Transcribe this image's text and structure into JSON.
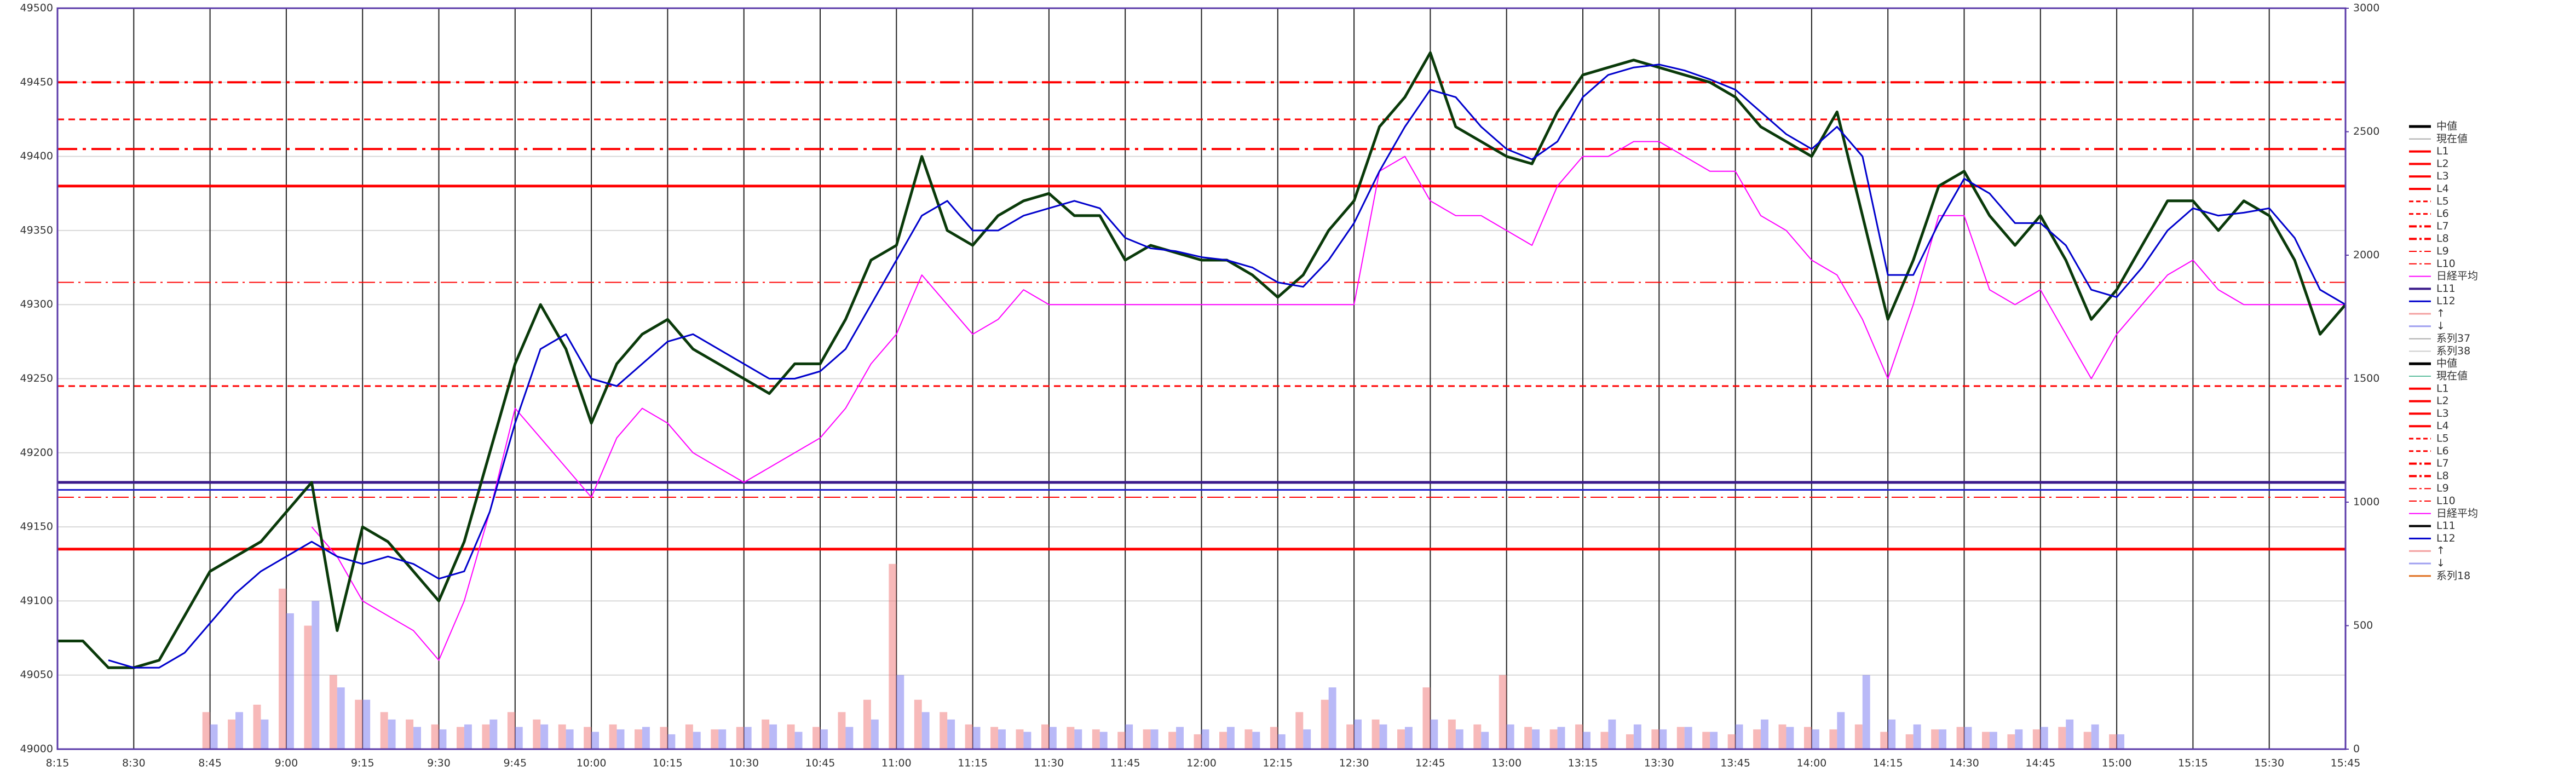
{
  "chart_data": {
    "type": "line",
    "x": [
      495,
      500,
      505,
      510,
      515,
      520,
      525,
      530,
      535,
      540,
      545,
      550,
      555,
      560,
      565,
      570,
      575,
      580,
      585,
      590,
      595,
      600,
      605,
      610,
      615,
      620,
      625,
      630,
      635,
      640,
      645,
      650,
      655,
      660,
      665,
      670,
      675,
      680,
      685,
      690,
      695,
      700,
      705,
      710,
      715,
      720,
      725,
      730,
      735,
      740,
      745,
      750,
      755,
      760,
      765,
      770,
      775,
      780,
      785,
      790,
      795,
      800,
      805,
      810,
      815,
      820,
      825,
      830,
      835,
      840,
      845,
      850,
      855,
      860,
      865,
      870,
      875,
      880,
      885,
      890,
      895,
      900,
      905,
      910,
      915,
      920,
      925,
      930,
      935,
      940,
      945
    ],
    "xlim": [
      495,
      945
    ],
    "xticks": [
      {
        "value": 495,
        "label": "8:15"
      },
      {
        "value": 510,
        "label": "8:30"
      },
      {
        "value": 525,
        "label": "8:45"
      },
      {
        "value": 540,
        "label": "9:00"
      },
      {
        "value": 555,
        "label": "9:15"
      },
      {
        "value": 570,
        "label": "9:30"
      },
      {
        "value": 585,
        "label": "9:45"
      },
      {
        "value": 600,
        "label": "10:00"
      },
      {
        "value": 615,
        "label": "10:15"
      },
      {
        "value": 630,
        "label": "10:30"
      },
      {
        "value": 645,
        "label": "10:45"
      },
      {
        "value": 660,
        "label": "11:00"
      },
      {
        "value": 675,
        "label": "11:15"
      },
      {
        "value": 690,
        "label": "11:30"
      },
      {
        "value": 705,
        "label": "11:45"
      },
      {
        "value": 720,
        "label": "12:00"
      },
      {
        "value": 735,
        "label": "12:15"
      },
      {
        "value": 750,
        "label": "12:30"
      },
      {
        "value": 765,
        "label": "12:45"
      },
      {
        "value": 780,
        "label": "13:00"
      },
      {
        "value": 795,
        "label": "13:15"
      },
      {
        "value": 810,
        "label": "13:30"
      },
      {
        "value": 825,
        "label": "13:45"
      },
      {
        "value": 840,
        "label": "14:00"
      },
      {
        "value": 855,
        "label": "14:15"
      },
      {
        "value": 870,
        "label": "14:30"
      },
      {
        "value": 885,
        "label": "14:45"
      },
      {
        "value": 900,
        "label": "15:00"
      },
      {
        "value": 915,
        "label": "15:15"
      },
      {
        "value": 930,
        "label": "15:30"
      },
      {
        "value": 945,
        "label": "15:45"
      }
    ],
    "ylim": [
      49000,
      49500
    ],
    "yticks": [
      49000,
      49050,
      49100,
      49150,
      49200,
      49250,
      49300,
      49350,
      49400,
      49450,
      49500
    ],
    "y2lim": [
      0,
      3000
    ],
    "y2ticks": [
      0,
      500,
      1000,
      1500,
      2000,
      2500,
      3000
    ],
    "grid": true,
    "levels": [
      {
        "value": 49380,
        "color": "#ff0000",
        "dash": "none",
        "width": 5
      },
      {
        "value": 49135,
        "color": "#ff0000",
        "dash": "none",
        "width": 5
      },
      {
        "value": 49425,
        "color": "#ff0000",
        "dash": "12,8",
        "width": 3
      },
      {
        "value": 49245,
        "color": "#ff0000",
        "dash": "12,8",
        "width": 3
      },
      {
        "value": 49450,
        "color": "#ff0000",
        "dash": "36,10,6,10",
        "width": 4
      },
      {
        "value": 49405,
        "color": "#ff0000",
        "dash": "36,10,6,10",
        "width": 4
      },
      {
        "value": 49315,
        "color": "#ff0000",
        "dash": "30,8,4,8",
        "width": 2
      },
      {
        "value": 49170,
        "color": "#ff0000",
        "dash": "30,8,4,8",
        "width": 2
      },
      {
        "value": 49180,
        "color": "#3a1a8a",
        "dash": "none",
        "width": 5
      },
      {
        "value": 49175,
        "color": "#2020cc",
        "dash": "none",
        "width": 3
      }
    ],
    "bar_series": [
      {
        "name": "系列37",
        "color": "#f08080",
        "axis": "y2",
        "values": [
          null,
          null,
          null,
          null,
          null,
          null,
          150,
          120,
          180,
          650,
          500,
          300,
          200,
          150,
          120,
          100,
          90,
          100,
          150,
          120,
          100,
          90,
          100,
          80,
          90,
          100,
          80,
          90,
          120,
          100,
          90,
          150,
          200,
          750,
          200,
          150,
          100,
          90,
          80,
          100,
          90,
          80,
          70,
          80,
          70,
          60,
          70,
          80,
          90,
          150,
          200,
          100,
          120,
          80,
          250,
          120,
          100,
          300,
          90,
          80,
          100,
          70,
          60,
          80,
          90,
          70,
          60,
          80,
          100,
          90,
          80,
          100,
          70,
          60,
          80,
          90,
          70,
          60,
          80,
          90,
          70,
          60,
          null,
          null,
          null,
          null,
          null,
          null,
          null,
          null,
          null
        ]
      },
      {
        "name": "系列38",
        "color": "#8080f0",
        "axis": "y2",
        "values": [
          null,
          null,
          null,
          null,
          null,
          null,
          100,
          150,
          120,
          550,
          600,
          250,
          200,
          120,
          90,
          80,
          100,
          120,
          90,
          100,
          80,
          70,
          80,
          90,
          60,
          70,
          80,
          90,
          100,
          70,
          80,
          90,
          120,
          300,
          150,
          120,
          90,
          80,
          70,
          90,
          80,
          70,
          100,
          80,
          90,
          80,
          90,
          70,
          60,
          80,
          250,
          120,
          100,
          90,
          120,
          80,
          70,
          100,
          80,
          90,
          70,
          120,
          100,
          80,
          90,
          70,
          100,
          120,
          90,
          80,
          150,
          300,
          120,
          100,
          80,
          90,
          70,
          80,
          90,
          120,
          100,
          60,
          null,
          null,
          null,
          null,
          null,
          null,
          null,
          null,
          null
        ]
      }
    ],
    "series": [
      {
        "name": "日経平均",
        "color": "#ff00ff",
        "width": 2,
        "values": [
          null,
          null,
          null,
          null,
          null,
          null,
          null,
          null,
          null,
          null,
          49150,
          49130,
          49100,
          49090,
          49080,
          49060,
          49100,
          49160,
          49230,
          49210,
          49190,
          49170,
          49210,
          49230,
          49220,
          49200,
          49190,
          49180,
          49190,
          49200,
          49210,
          49230,
          49260,
          49280,
          49320,
          49300,
          49280,
          49290,
          49310,
          49300,
          49300,
          49300,
          49300,
          49300,
          49300,
          49300,
          49300,
          49300,
          49300,
          49300,
          49300,
          49300,
          49390,
          49400,
          49370,
          49360,
          49360,
          49350,
          49340,
          49380,
          49400,
          49400,
          49410,
          49410,
          49400,
          49390,
          49390,
          49360,
          49350,
          49330,
          49320,
          49290,
          49250,
          49300,
          49360,
          49360,
          49310,
          49300,
          49310,
          49280,
          49250,
          49280,
          49300,
          49320,
          49330,
          49310,
          49300,
          49300,
          49300,
          49300,
          49300
        ]
      },
      {
        "name": "中値",
        "color": "#0a3a0a",
        "width": 5,
        "values": [
          49073,
          49073,
          49055,
          49055,
          49060,
          49090,
          49120,
          49130,
          49140,
          49160,
          49180,
          49080,
          49150,
          49140,
          49120,
          49100,
          49140,
          49200,
          49260,
          49300,
          49270,
          49220,
          49260,
          49280,
          49290,
          49270,
          49260,
          49250,
          49240,
          49260,
          49260,
          49290,
          49330,
          49340,
          49400,
          49350,
          49340,
          49360,
          49370,
          49375,
          49360,
          49360,
          49330,
          49340,
          49335,
          49330,
          49330,
          49320,
          49305,
          49320,
          49350,
          49370,
          49420,
          49440,
          49470,
          49420,
          49410,
          49400,
          49395,
          49430,
          49455,
          49460,
          49465,
          49460,
          49455,
          49450,
          49440,
          49420,
          49410,
          49400,
          49430,
          49360,
          49290,
          49330,
          49380,
          49390,
          49360,
          49340,
          49360,
          49330,
          49290,
          49310,
          49340,
          49370,
          49370,
          49350,
          49370,
          49360,
          49330,
          49280,
          49300
        ]
      },
      {
        "name": "L12",
        "color": "#0000cc",
        "width": 3,
        "values": [
          null,
          null,
          49060,
          49055,
          49055,
          49065,
          49085,
          49105,
          49120,
          49130,
          49140,
          49130,
          49125,
          49130,
          49125,
          49115,
          49120,
          49160,
          49220,
          49270,
          49280,
          49250,
          49245,
          49260,
          49275,
          49280,
          49270,
          49260,
          49250,
          49250,
          49255,
          49270,
          49300,
          49330,
          49360,
          49370,
          49350,
          49350,
          49360,
          49365,
          49370,
          49365,
          49345,
          49338,
          49336,
          49332,
          49330,
          49325,
          49315,
          49312,
          49330,
          49355,
          49390,
          49420,
          49445,
          49440,
          49420,
          49405,
          49398,
          49410,
          49440,
          49455,
          49460,
          49462,
          49458,
          49452,
          49445,
          49430,
          49415,
          49405,
          49420,
          49400,
          49320,
          49320,
          49355,
          49385,
          49375,
          49355,
          49355,
          49340,
          49310,
          49305,
          49325,
          49350,
          49365,
          49360,
          49362,
          49365,
          49345,
          49310,
          49300
        ]
      }
    ],
    "legend": [
      {
        "name": "中値",
        "color": "#000000",
        "width": 5
      },
      {
        "name": "現在値",
        "color": "#aaaaaa",
        "width": 2
      },
      {
        "name": "L1",
        "color": "#ff0000",
        "width": 4
      },
      {
        "name": "L2",
        "color": "#ff0000",
        "width": 4
      },
      {
        "name": "L3",
        "color": "#ff0000",
        "width": 4
      },
      {
        "name": "L4",
        "color": "#ff0000",
        "width": 4
      },
      {
        "name": "L5",
        "color": "#ff0000",
        "width": 3,
        "dash": "8,5"
      },
      {
        "name": "L6",
        "color": "#ff0000",
        "width": 3,
        "dash": "8,5"
      },
      {
        "name": "L7",
        "color": "#ff0000",
        "width": 4,
        "dash": "14,5,4,5"
      },
      {
        "name": "L8",
        "color": "#ff0000",
        "width": 4,
        "dash": "14,5,4,5"
      },
      {
        "name": "L9",
        "color": "#ff0000",
        "width": 2,
        "dash": "14,5,4,5"
      },
      {
        "name": "L10",
        "color": "#ff0000",
        "width": 2,
        "dash": "14,5,4,5"
      },
      {
        "name": "日経平均",
        "color": "#ff00ff",
        "width": 2
      },
      {
        "name": "L11",
        "color": "#3a1a8a",
        "width": 4
      },
      {
        "name": "L12",
        "color": "#0000cc",
        "width": 3
      },
      {
        "name": "↑",
        "color": "#f4a0a0",
        "width": 3
      },
      {
        "name": "↓",
        "color": "#a0a0f0",
        "width": 3
      },
      {
        "name": "系列37",
        "color": "#aaaaaa",
        "width": 2
      },
      {
        "name": "系列38",
        "color": "#cccccc",
        "width": 2
      },
      {
        "name": "中値",
        "color": "#000000",
        "width": 5
      },
      {
        "name": "現在値",
        "color": "#60c0a0",
        "width": 2
      },
      {
        "name": "L1",
        "color": "#ff0000",
        "width": 4
      },
      {
        "name": "L2",
        "color": "#ff0000",
        "width": 4
      },
      {
        "name": "L3",
        "color": "#ff0000",
        "width": 4
      },
      {
        "name": "L4",
        "color": "#ff0000",
        "width": 4
      },
      {
        "name": "L5",
        "color": "#ff0000",
        "width": 3,
        "dash": "8,5"
      },
      {
        "name": "L6",
        "color": "#ff0000",
        "width": 3,
        "dash": "8,5"
      },
      {
        "name": "L7",
        "color": "#ff0000",
        "width": 4,
        "dash": "14,5,4,5"
      },
      {
        "name": "L8",
        "color": "#ff0000",
        "width": 4,
        "dash": "14,5,4,5"
      },
      {
        "name": "L9",
        "color": "#ff0000",
        "width": 2,
        "dash": "14,5,4,5"
      },
      {
        "name": "L10",
        "color": "#ff0000",
        "width": 2,
        "dash": "14,5,4,5"
      },
      {
        "name": "日経平均",
        "color": "#ff00ff",
        "width": 2
      },
      {
        "name": "L11",
        "color": "#000000",
        "width": 4
      },
      {
        "name": "L12",
        "color": "#0000cc",
        "width": 3
      },
      {
        "name": "↑",
        "color": "#f4a0a0",
        "width": 3
      },
      {
        "name": "↓",
        "color": "#a0a0f0",
        "width": 3
      },
      {
        "name": "系列18",
        "color": "#e07020",
        "width": 3
      }
    ]
  }
}
